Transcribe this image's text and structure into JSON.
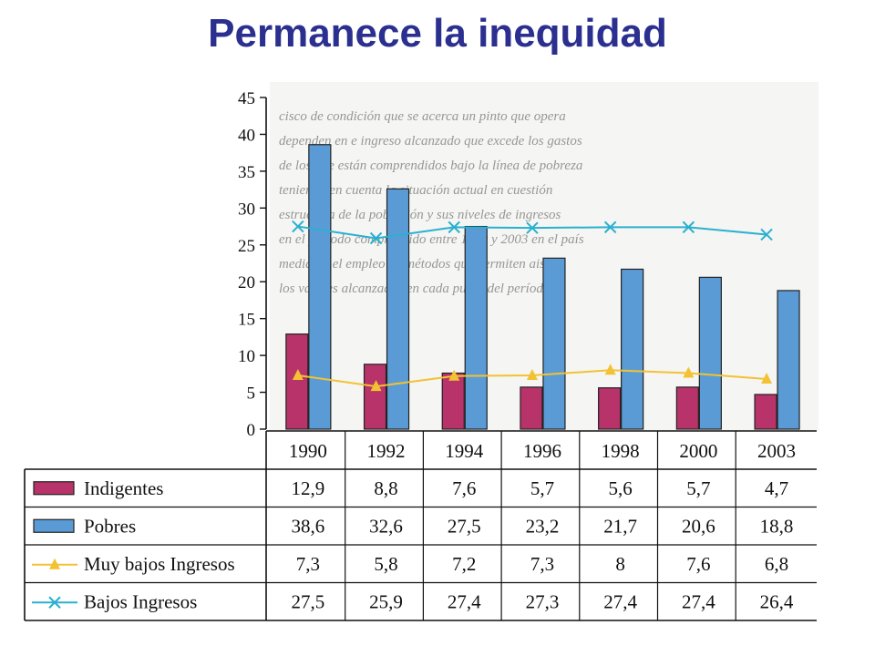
{
  "title": "Permanece la inequidad",
  "chart_data": {
    "type": "bar",
    "categories": [
      "1990",
      "1992",
      "1994",
      "1996",
      "1998",
      "2000",
      "2003"
    ],
    "yticks": [
      "0",
      "5",
      "10",
      "15",
      "20",
      "25",
      "30",
      "35",
      "40",
      "45"
    ],
    "ylim": [
      0,
      45
    ],
    "grid": false,
    "legend": "table-left",
    "series": [
      {
        "name": "Indigentes",
        "kind": "bar",
        "color": "#b8336a",
        "values": [
          12.9,
          8.8,
          7.6,
          5.7,
          5.6,
          5.7,
          4.7
        ],
        "labels": [
          "12,9",
          "8,8",
          "7,6",
          "5,7",
          "5,6",
          "5,7",
          "4,7"
        ]
      },
      {
        "name": "Pobres",
        "kind": "bar",
        "color": "#5b9bd5",
        "values": [
          38.6,
          32.6,
          27.5,
          23.2,
          21.7,
          20.6,
          18.8
        ],
        "labels": [
          "38,6",
          "32,6",
          "27,5",
          "23,2",
          "21,7",
          "20,6",
          "18,8"
        ]
      },
      {
        "name": "Muy bajos Ingresos",
        "kind": "line",
        "marker": "triangle",
        "color": "#f2c233",
        "values": [
          7.3,
          5.8,
          7.2,
          7.3,
          8,
          7.6,
          6.8
        ],
        "labels": [
          "7,3",
          "5,8",
          "7,2",
          "7,3",
          "8",
          "7,6",
          "6,8"
        ]
      },
      {
        "name": "Bajos Ingresos",
        "kind": "line",
        "marker": "x",
        "color": "#2ab0cf",
        "values": [
          27.5,
          25.9,
          27.4,
          27.3,
          27.4,
          27.4,
          26.4
        ],
        "labels": [
          "27,5",
          "25,9",
          "27,4",
          "27,3",
          "27,4",
          "27,4",
          "26,4"
        ]
      }
    ]
  }
}
